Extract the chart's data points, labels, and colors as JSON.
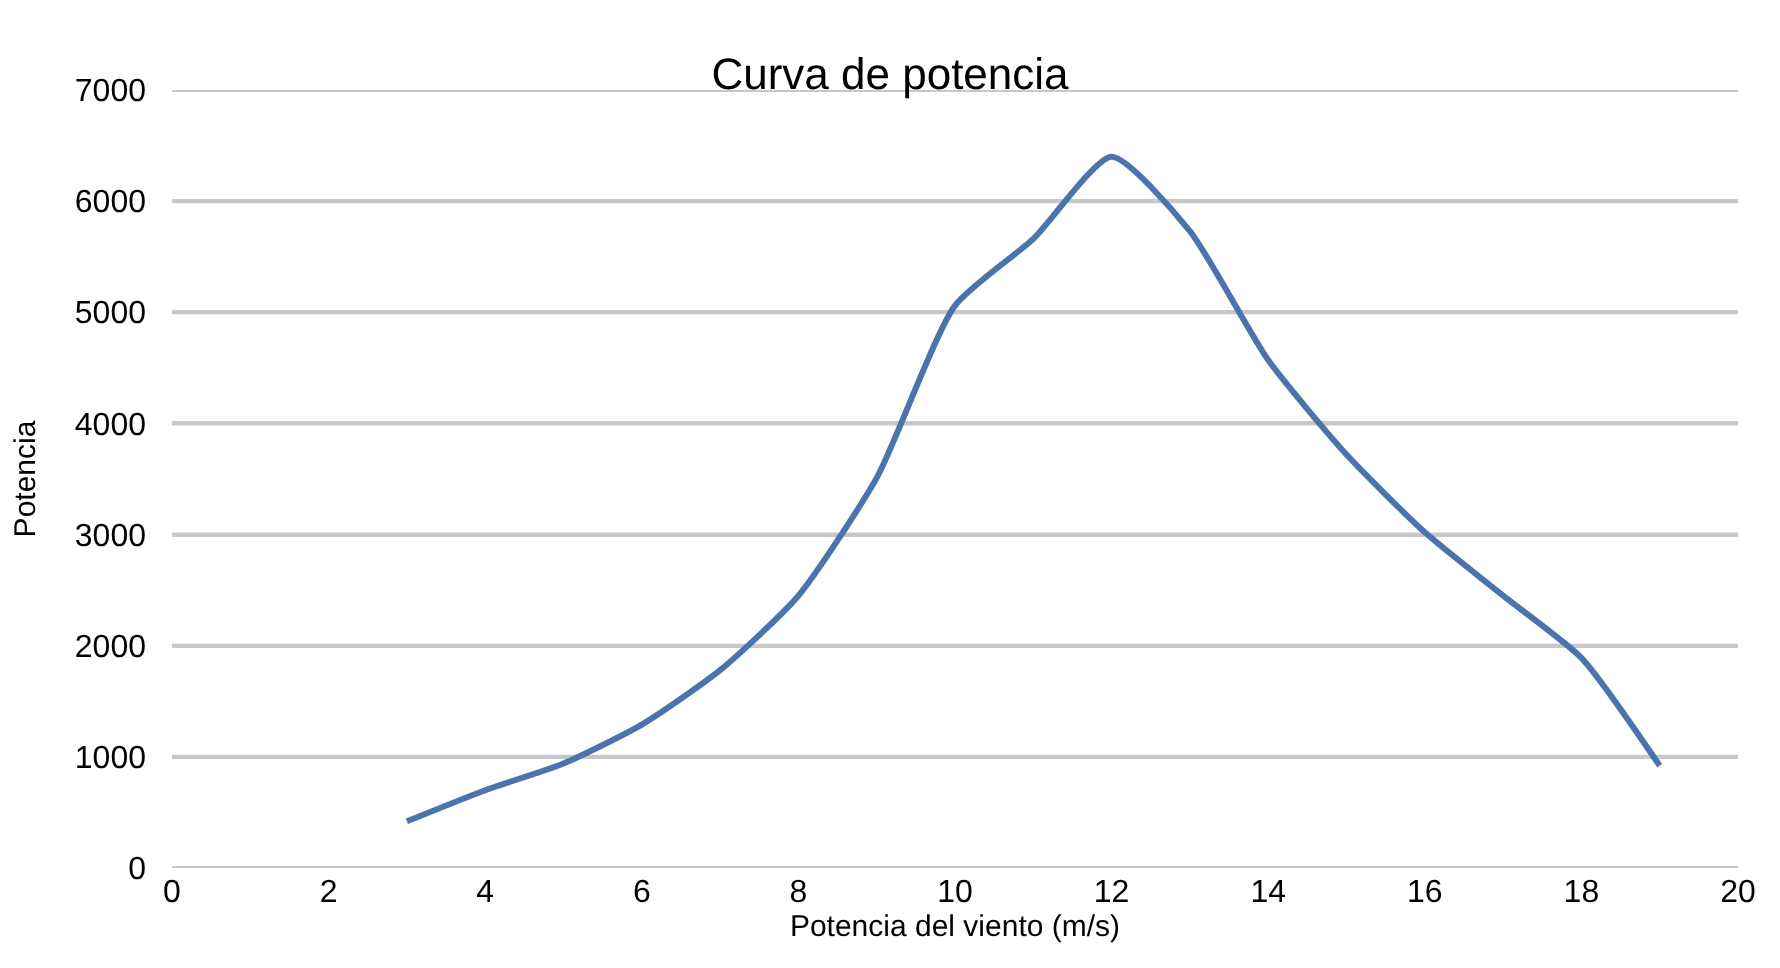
{
  "chart_data": {
    "type": "line",
    "title": "Curva de potencia",
    "xlabel": "Potencia del viento (m/s)",
    "ylabel": "Potencia",
    "x": [
      3,
      4,
      5,
      6,
      7,
      8,
      9,
      10,
      11,
      12,
      13,
      14,
      15,
      16,
      17,
      18,
      19
    ],
    "series": [
      {
        "color": "#4a74ab",
        "values": [
          420,
          700,
          940,
          1290,
          1780,
          2450,
          3510,
          5060,
          5660,
          6400,
          5730,
          4570,
          3720,
          3020,
          2450,
          1890,
          920
        ]
      }
    ],
    "xlim": [
      0,
      20
    ],
    "xticks": [
      0,
      2,
      4,
      6,
      8,
      10,
      12,
      14,
      16,
      18,
      20
    ],
    "ylim": [
      0,
      7000
    ],
    "yticks": [
      0,
      1000,
      2000,
      3000,
      4000,
      5000,
      6000,
      7000
    ],
    "grid": "y",
    "marker": "none",
    "line_style": "solid"
  }
}
